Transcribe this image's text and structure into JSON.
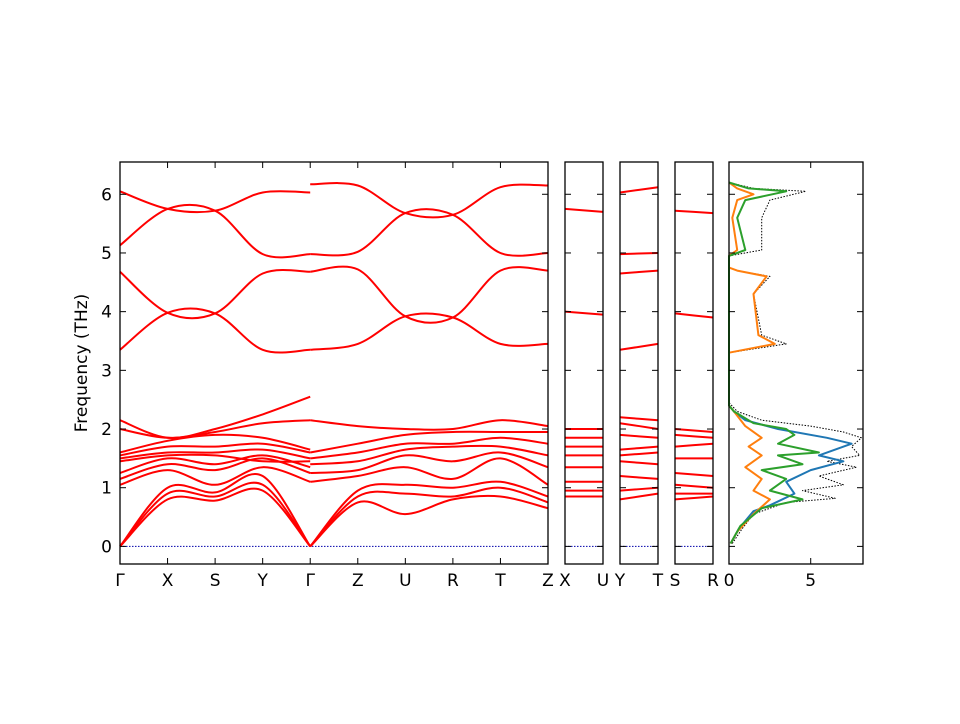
{
  "chart_data": {
    "type": "line",
    "ylabel": "Frequency (THz)",
    "ylim": [
      -0.3,
      6.55
    ],
    "y_ticks": [
      0,
      1,
      2,
      3,
      4,
      5,
      6
    ],
    "zero_line_color": "#0000aa",
    "band_color": "#ff0000",
    "band_segments": [
      {
        "id": "main",
        "points": [
          "Γ",
          "X",
          "S",
          "Y",
          "Γ",
          "Z",
          "U",
          "R",
          "T",
          "Z"
        ],
        "tick_labels": [
          "Γ",
          "X",
          "S",
          "Y",
          "Γ",
          "Z",
          "U",
          "R",
          "T",
          "Z"
        ],
        "branches": [
          [
            0,
            0.8,
            0.78,
            0.95,
            0
          ],
          [
            0,
            0.9,
            0.85,
            1.05,
            0
          ],
          [
            0,
            1.0,
            0.92,
            1.2,
            0
          ],
          [
            1.05,
            1.3,
            1.05,
            1.35,
            1.1
          ],
          [
            1.15,
            1.4,
            1.3,
            1.5,
            1.25
          ],
          [
            1.25,
            1.5,
            1.4,
            1.55,
            1.35
          ],
          [
            1.45,
            1.55,
            1.55,
            1.45,
            1.45
          ],
          [
            1.5,
            1.6,
            1.6,
            1.65,
            1.5
          ],
          [
            1.55,
            1.7,
            1.7,
            1.75,
            1.6
          ],
          [
            1.6,
            1.8,
            1.9,
            1.85,
            1.65
          ],
          [
            2.0,
            1.85,
            1.95,
            2.1,
            2.15
          ],
          [
            2.15,
            1.85,
            2.0,
            2.25,
            2.55
          ],
          [
            3.35,
            3.98,
            3.97,
            3.35,
            3.35
          ],
          [
            4.68,
            3.98,
            3.97,
            4.65,
            4.68
          ],
          [
            5.13,
            5.75,
            5.72,
            4.98,
            4.98
          ],
          [
            6.05,
            5.75,
            5.72,
            6.03,
            6.03
          ]
        ],
        "branches2": [
          [
            0,
            0.75,
            0.55,
            0.8,
            0.85,
            0.65
          ],
          [
            0,
            0.85,
            0.9,
            0.85,
            1.0,
            0.75
          ],
          [
            0,
            0.95,
            1.05,
            1.0,
            1.1,
            0.85
          ],
          [
            1.1,
            1.2,
            1.35,
            1.15,
            1.5,
            1.05
          ],
          [
            1.25,
            1.3,
            1.55,
            1.45,
            1.6,
            1.35
          ],
          [
            1.4,
            1.45,
            1.65,
            1.7,
            1.7,
            1.55
          ],
          [
            1.5,
            1.6,
            1.75,
            1.75,
            1.85,
            1.75
          ],
          [
            1.6,
            1.75,
            1.9,
            1.95,
            1.95,
            1.95
          ],
          [
            2.15,
            2.05,
            2.0,
            2.0,
            2.15,
            2.05
          ],
          [
            3.35,
            3.45,
            3.92,
            3.9,
            3.45,
            3.45
          ],
          [
            4.68,
            4.72,
            3.92,
            3.9,
            4.7,
            4.7
          ],
          [
            4.98,
            5.02,
            5.68,
            5.65,
            5.0,
            5.0
          ],
          [
            6.17,
            6.15,
            5.68,
            5.65,
            6.12,
            6.15
          ]
        ]
      },
      {
        "id": "seg2",
        "points": [
          "X",
          "U"
        ],
        "tick_labels": [
          "X",
          "U"
        ],
        "branches": [
          [
            0.85,
            0.85
          ],
          [
            0.95,
            0.95
          ],
          [
            1.1,
            1.1
          ],
          [
            1.35,
            1.35
          ],
          [
            1.55,
            1.55
          ],
          [
            1.7,
            1.7
          ],
          [
            1.85,
            1.85
          ],
          [
            2.0,
            2.0
          ],
          [
            4.0,
            3.95
          ],
          [
            5.75,
            5.7
          ]
        ]
      },
      {
        "id": "seg3",
        "points": [
          "Y",
          "T"
        ],
        "tick_labels": [
          "Y",
          "T"
        ],
        "branches": [
          [
            0.8,
            0.9
          ],
          [
            0.95,
            1.0
          ],
          [
            1.2,
            1.15
          ],
          [
            1.45,
            1.4
          ],
          [
            1.55,
            1.6
          ],
          [
            1.65,
            1.7
          ],
          [
            1.9,
            1.85
          ],
          [
            2.1,
            2.0
          ],
          [
            2.2,
            2.15
          ],
          [
            3.35,
            3.45
          ],
          [
            4.65,
            4.7
          ],
          [
            4.98,
            5.0
          ],
          [
            6.03,
            6.12
          ]
        ]
      },
      {
        "id": "seg4",
        "points": [
          "S",
          "R"
        ],
        "tick_labels": [
          "S",
          "R"
        ],
        "branches": [
          [
            0.8,
            0.85
          ],
          [
            0.9,
            0.9
          ],
          [
            1.05,
            1.0
          ],
          [
            1.25,
            1.2
          ],
          [
            1.5,
            1.5
          ],
          [
            1.7,
            1.75
          ],
          [
            1.9,
            1.85
          ],
          [
            2.0,
            1.95
          ],
          [
            3.97,
            3.9
          ],
          [
            5.72,
            5.68
          ]
        ]
      }
    ],
    "dos_panel": {
      "xlim": [
        0,
        8.2
      ],
      "x_ticks": [
        0,
        5
      ],
      "series": [
        {
          "color": "#000000",
          "style": "dotted",
          "points": [
            [
              0.2,
              0.05
            ],
            [
              0.8,
              0.3
            ],
            [
              1.5,
              0.55
            ],
            [
              3.5,
              0.75
            ],
            [
              6.5,
              0.82
            ],
            [
              4.5,
              0.95
            ],
            [
              7.0,
              1.05
            ],
            [
              5.5,
              1.2
            ],
            [
              7.8,
              1.35
            ],
            [
              6.0,
              1.45
            ],
            [
              8.0,
              1.55
            ],
            [
              7.5,
              1.7
            ],
            [
              8.1,
              1.85
            ],
            [
              7.0,
              1.95
            ],
            [
              5.0,
              2.05
            ],
            [
              2.0,
              2.15
            ],
            [
              0.5,
              2.3
            ],
            [
              0,
              2.45
            ],
            [
              0,
              3.3
            ],
            [
              3.5,
              3.45
            ],
            [
              2.0,
              3.6
            ],
            [
              1.5,
              4.3
            ],
            [
              2.5,
              4.6
            ],
            [
              0.5,
              4.7
            ],
            [
              0,
              4.75
            ],
            [
              0,
              4.95
            ],
            [
              2.0,
              5.05
            ],
            [
              2.0,
              5.6
            ],
            [
              2.5,
              5.9
            ],
            [
              4.7,
              6.05
            ],
            [
              1.5,
              6.1
            ],
            [
              0,
              6.2
            ]
          ]
        },
        {
          "color": "#1f77b4",
          "style": "solid",
          "points": [
            [
              0.1,
              0.05
            ],
            [
              0.6,
              0.3
            ],
            [
              1.5,
              0.6
            ],
            [
              2.5,
              0.7
            ],
            [
              4.0,
              0.9
            ],
            [
              3.5,
              1.1
            ],
            [
              5.0,
              1.3
            ],
            [
              7.0,
              1.45
            ],
            [
              5.5,
              1.55
            ],
            [
              7.5,
              1.75
            ],
            [
              6.0,
              1.85
            ],
            [
              3.0,
              2.0
            ],
            [
              1.0,
              2.15
            ],
            [
              0.3,
              2.3
            ],
            [
              0,
              2.4
            ]
          ]
        },
        {
          "color": "#ff7f0e",
          "style": "solid",
          "points": [
            [
              0.1,
              0.05
            ],
            [
              0.5,
              0.25
            ],
            [
              1.5,
              0.55
            ],
            [
              2.5,
              0.8
            ],
            [
              1.5,
              0.95
            ],
            [
              2.0,
              1.15
            ],
            [
              1.0,
              1.35
            ],
            [
              2.0,
              1.55
            ],
            [
              1.2,
              1.7
            ],
            [
              2.0,
              1.85
            ],
            [
              1.0,
              2.05
            ],
            [
              0.3,
              2.3
            ],
            [
              0,
              2.4
            ],
            [
              0,
              3.3
            ],
            [
              2.8,
              3.45
            ],
            [
              1.8,
              3.6
            ],
            [
              1.5,
              4.3
            ],
            [
              2.3,
              4.6
            ],
            [
              0.5,
              4.7
            ],
            [
              0,
              4.75
            ],
            [
              0,
              4.95
            ],
            [
              0.5,
              5.05
            ],
            [
              0.2,
              5.6
            ],
            [
              0.5,
              5.9
            ],
            [
              1.5,
              6.0
            ],
            [
              0.5,
              6.1
            ],
            [
              0,
              6.2
            ]
          ]
        },
        {
          "color": "#2ca02c",
          "style": "solid",
          "points": [
            [
              0.1,
              0.05
            ],
            [
              0.7,
              0.35
            ],
            [
              2.0,
              0.65
            ],
            [
              4.5,
              0.8
            ],
            [
              2.5,
              0.95
            ],
            [
              3.5,
              1.15
            ],
            [
              2.0,
              1.3
            ],
            [
              4.5,
              1.4
            ],
            [
              3.0,
              1.55
            ],
            [
              5.5,
              1.6
            ],
            [
              3.0,
              1.75
            ],
            [
              4.0,
              1.9
            ],
            [
              3.5,
              2.0
            ],
            [
              1.5,
              2.1
            ],
            [
              0.3,
              2.3
            ],
            [
              0,
              2.4
            ],
            [
              0,
              4.95
            ],
            [
              1.0,
              5.05
            ],
            [
              0.5,
              5.6
            ],
            [
              1.0,
              5.9
            ],
            [
              3.5,
              6.05
            ],
            [
              1.2,
              6.1
            ],
            [
              0,
              6.2
            ]
          ]
        }
      ]
    }
  }
}
